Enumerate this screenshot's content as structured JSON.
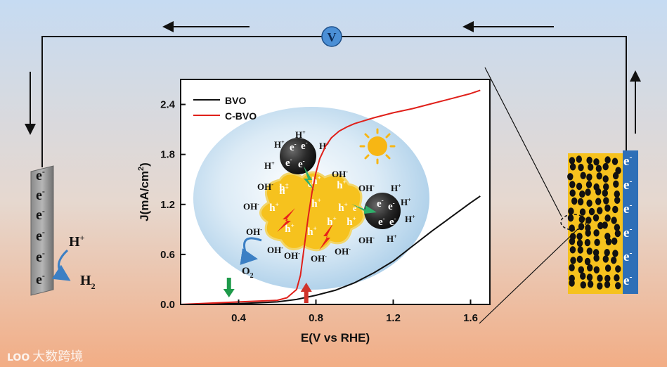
{
  "figure": {
    "voltmeter_label": "V",
    "electron_label": "e",
    "electron_sup": "-",
    "hydrogen_ion": "H",
    "hydrogen_ion_sup": "+",
    "hydrogen_gas": "H",
    "hydrogen_gas_sub": "2",
    "hole_label": "h",
    "hole_sup": "+",
    "hydroxide_label": "OH",
    "hydroxide_sup": "-",
    "oxygen_label": "O",
    "oxygen_sub": "2",
    "electrode_plus_sign": "+",
    "watermark_logo": "LOO",
    "watermark_text": "大数跨境"
  },
  "chart_data": {
    "type": "line",
    "xlabel": "E(V vs RHE)",
    "ylabel": "J(mA/cm",
    "ylabel_sup": "2",
    "ylabel_close": ")",
    "xlim": [
      0.1,
      1.7
    ],
    "ylim": [
      0,
      2.7
    ],
    "xticks": [
      0.4,
      0.8,
      1.2,
      1.6
    ],
    "yticks": [
      0.0,
      0.6,
      1.2,
      1.8,
      2.4
    ],
    "xtick_labels": [
      "0.4",
      "0.8",
      "1.2",
      "1.6"
    ],
    "ytick_labels": [
      "0.0",
      "0.6",
      "1.2",
      "1.8",
      "2.4"
    ],
    "legend_position": "top-left",
    "onset_markers": [
      {
        "x": 0.35,
        "color": "#1e9a4a"
      },
      {
        "x": 0.75,
        "color": "#d0332b"
      }
    ],
    "series": [
      {
        "name": "BVO",
        "color": "#111111",
        "x": [
          0.1,
          0.2,
          0.3,
          0.4,
          0.5,
          0.6,
          0.7,
          0.8,
          0.9,
          1.0,
          1.1,
          1.2,
          1.3,
          1.4,
          1.5,
          1.6,
          1.65
        ],
        "y": [
          0.0,
          0.0,
          0.01,
          0.01,
          0.02,
          0.03,
          0.06,
          0.11,
          0.17,
          0.26,
          0.38,
          0.52,
          0.7,
          0.88,
          1.05,
          1.22,
          1.3
        ]
      },
      {
        "name": "C-BVO",
        "color": "#e0201a",
        "x": [
          0.1,
          0.3,
          0.4,
          0.5,
          0.6,
          0.65,
          0.7,
          0.72,
          0.74,
          0.76,
          0.78,
          0.8,
          0.82,
          0.85,
          0.88,
          0.92,
          0.96,
          1.0,
          1.1,
          1.2,
          1.3,
          1.4,
          1.5,
          1.6,
          1.65
        ],
        "y": [
          0.0,
          0.02,
          0.03,
          0.04,
          0.05,
          0.08,
          0.18,
          0.35,
          0.7,
          1.05,
          1.35,
          1.58,
          1.75,
          1.9,
          2.0,
          2.08,
          2.13,
          2.17,
          2.24,
          2.3,
          2.35,
          2.41,
          2.47,
          2.53,
          2.57
        ]
      }
    ]
  }
}
